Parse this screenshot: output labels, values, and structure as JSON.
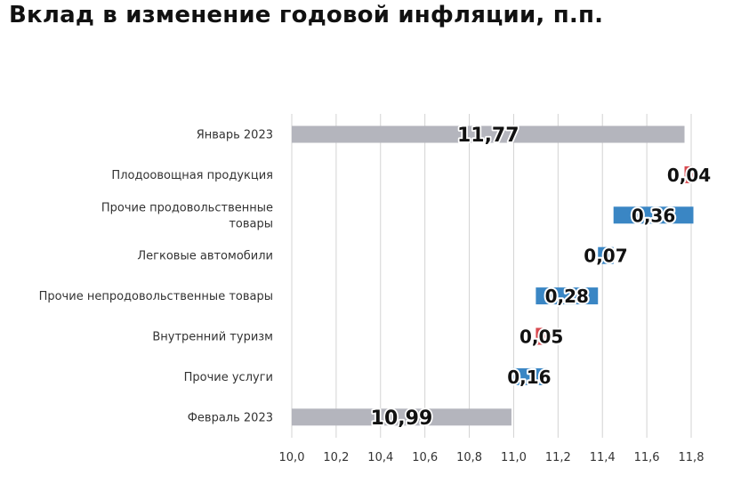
{
  "title": "Вклад в изменение годовой инфляции, п.п.",
  "colors": {
    "total": "#b4b5bd",
    "increase": "#d84a50",
    "decrease": "#3a86c4",
    "grid": "#d3d3d3"
  },
  "chart_data": {
    "type": "bar",
    "subtype": "waterfall",
    "orientation": "horizontal",
    "title": "Вклад в изменение годовой инфляции, п.п.",
    "xlabel": "",
    "ylabel": "",
    "xlim": [
      10.0,
      11.8
    ],
    "ticks": [
      "10,0",
      "10,2",
      "10,4",
      "10,6",
      "10,8",
      "11,0",
      "11,2",
      "11,4",
      "11,6",
      "11,8"
    ],
    "grid": true,
    "legend": "none",
    "items": [
      {
        "label": [
          "Январь 2023"
        ],
        "kind": "total",
        "value": 11.77,
        "text": "11,77"
      },
      {
        "label": [
          "Плодоовощная продукция"
        ],
        "kind": "increase",
        "value": 0.04,
        "text": "0,04"
      },
      {
        "label": [
          "Прочие продовольственные",
          "товары"
        ],
        "kind": "decrease",
        "value": 0.36,
        "text": "0,36"
      },
      {
        "label": [
          "Легковые автомобили"
        ],
        "kind": "decrease",
        "value": 0.07,
        "text": "0,07"
      },
      {
        "label": [
          "Прочие непродовольственные товары"
        ],
        "kind": "decrease",
        "value": 0.28,
        "text": "0,28"
      },
      {
        "label": [
          "Внутренний туризм"
        ],
        "kind": "increase",
        "value": 0.05,
        "text": "0,05"
      },
      {
        "label": [
          "Прочие услуги"
        ],
        "kind": "decrease",
        "value": 0.16,
        "text": "0,16"
      },
      {
        "label": [
          "Февраль 2023"
        ],
        "kind": "total",
        "value": 10.99,
        "text": "10,99"
      }
    ]
  }
}
